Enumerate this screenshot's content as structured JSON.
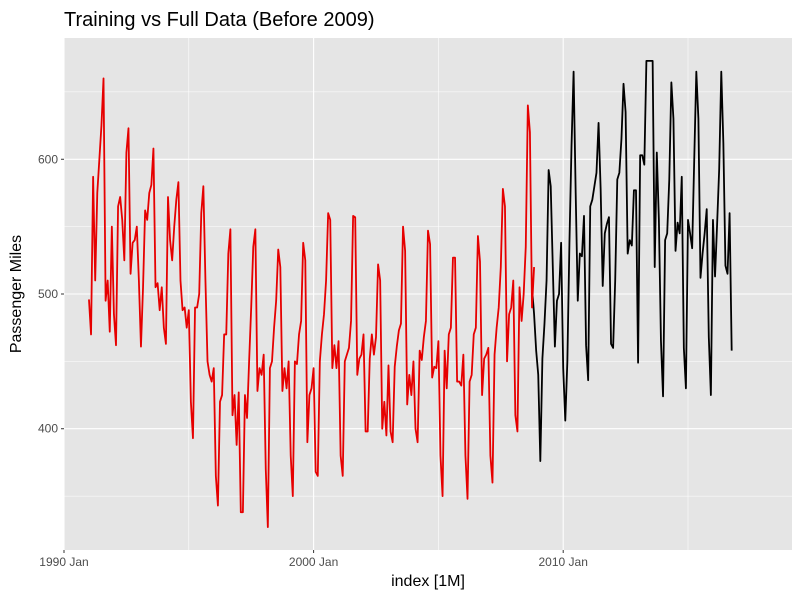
{
  "chart_data": {
    "type": "line",
    "title": "Training vs Full Data (Before 2009)",
    "xlabel": "index [1M]",
    "ylabel": "Passenger Miles",
    "x_ticks": [
      "1990 Jan",
      "2000 Jan",
      "2010 Jan"
    ],
    "y_ticks": [
      400,
      500,
      600
    ],
    "xlim": [
      "1990-01",
      "2019-03"
    ],
    "ylim": [
      310,
      690
    ],
    "grid": true,
    "legend": "none",
    "background": "#e5e5e5",
    "series": [
      {
        "color": "#000000",
        "start": "2008-10",
        "values": [
          505,
          485,
          458,
          440,
          376,
          452,
          478,
          510,
          592,
          580,
          520,
          461,
          495,
          500,
          538,
          445,
          406,
          450,
          538,
          610,
          665,
          575,
          495,
          530,
          528,
          558,
          462,
          436,
          565,
          570,
          580,
          590,
          627,
          578,
          506,
          545,
          552,
          557,
          463,
          460,
          510,
          585,
          590,
          615,
          656,
          635,
          530,
          540,
          536,
          577,
          577,
          449,
          603,
          603,
          596,
          673,
          673,
          673,
          673,
          520,
          605,
          555,
          465,
          424,
          540,
          545,
          585,
          657,
          630,
          532,
          553,
          545,
          587,
          460,
          430,
          555,
          545,
          534,
          600,
          665,
          630,
          512,
          530,
          545,
          563,
          468,
          425,
          555,
          513,
          552,
          593,
          665,
          612,
          521,
          515,
          560,
          458
        ]
      },
      {
        "color": "#e60000",
        "start": "1991-01",
        "values": [
          496,
          470,
          587,
          510,
          575,
          600,
          625,
          660,
          495,
          510,
          472,
          550,
          485,
          462,
          565,
          572,
          555,
          525,
          605,
          623,
          515,
          538,
          540,
          550,
          510,
          461,
          505,
          562,
          555,
          575,
          581,
          608,
          505,
          508,
          488,
          505,
          475,
          463,
          572,
          540,
          525,
          550,
          570,
          583,
          510,
          488,
          490,
          475,
          488,
          420,
          393,
          490,
          490,
          500,
          560,
          580,
          510,
          450,
          440,
          435,
          445,
          365,
          343,
          420,
          425,
          470,
          470,
          530,
          548,
          410,
          425,
          388,
          427,
          338,
          338,
          425,
          408,
          450,
          490,
          535,
          548,
          428,
          445,
          440,
          455,
          370,
          327,
          445,
          450,
          475,
          495,
          533,
          520,
          428,
          445,
          430,
          450,
          380,
          350,
          450,
          448,
          470,
          480,
          538,
          525,
          390,
          425,
          430,
          445,
          368,
          365,
          450,
          470,
          485,
          510,
          560,
          555,
          445,
          462,
          445,
          465,
          380,
          365,
          450,
          455,
          460,
          480,
          558,
          557,
          440,
          452,
          455,
          470,
          398,
          398,
          452,
          470,
          455,
          468,
          522,
          510,
          400,
          420,
          395,
          447,
          398,
          390,
          446,
          461,
          473,
          478,
          550,
          532,
          418,
          440,
          425,
          450,
          400,
          390,
          458,
          451,
          468,
          480,
          547,
          537,
          438,
          446,
          445,
          465,
          380,
          350,
          458,
          430,
          470,
          475,
          527,
          527,
          435,
          435,
          432,
          455,
          380,
          348,
          435,
          440,
          470,
          475,
          543,
          524,
          425,
          452,
          455,
          460,
          380,
          360,
          455,
          475,
          490,
          520,
          578,
          565,
          450,
          485,
          490,
          510,
          410,
          398,
          505,
          480,
          500,
          535,
          640,
          620,
          490,
          520
        ]
      }
    ]
  }
}
